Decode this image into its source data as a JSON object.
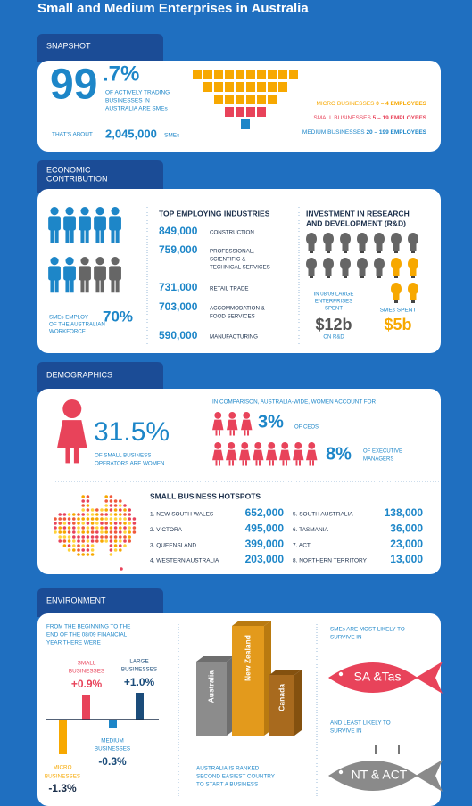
{
  "title": "Small and Medium Enterprises in Australia",
  "snapshot": {
    "heading": "SNAPSHOT",
    "big": "99",
    "big_decimal": ".7%",
    "big_caption": [
      "OF ACTIVELY TRADING",
      "BUSINESSES IN",
      "AUSTRALIA ARE SMEs"
    ],
    "about_prefix": "THAT'S ABOUT",
    "about_value": "2,045,000",
    "about_suffix": "SMEs",
    "legend": [
      {
        "label": "MICRO BUSINESSES",
        "range": "0 – 4 EMPLOYEES",
        "color": "#f7a800"
      },
      {
        "label": "SMALL BUSINESSES",
        "range": "5 – 19 EMPLOYEES",
        "color": "#e8435a"
      },
      {
        "label": "MEDIUM BUSINESSES",
        "range": "20 – 199 EMPLOYEES",
        "color": "#1d86c8"
      }
    ]
  },
  "economic": {
    "heading": [
      "ECONOMIC",
      "CONTRIBUTION"
    ],
    "employ_caption": [
      "SMEs EMPLOY",
      "OF THE AUSTRALIAN",
      "WORKFORCE"
    ],
    "employ_value": "70%",
    "industries_title": "TOP EMPLOYING INDUSTRIES",
    "industries": [
      {
        "value": "849,000",
        "label": [
          "CONSTRUCTION"
        ]
      },
      {
        "value": "759,000",
        "label": [
          "PROFESSIONAL,",
          "SCIENTIFIC &",
          "TECHNICAL SERVICES"
        ]
      },
      {
        "value": "731,000",
        "label": [
          "RETAIL TRADE"
        ]
      },
      {
        "value": "703,000",
        "label": [
          "ACCOMMODATION &",
          "FOOD SERVICES"
        ]
      },
      {
        "value": "590,000",
        "label": [
          "MANUFACTURING"
        ]
      }
    ],
    "research_title": [
      "INVESTMENT IN RESEARCH",
      "AND DEVELOPMENT (R&D)"
    ],
    "large_caption": [
      "IN 08/09 LARGE",
      "ENTERPRISES",
      "SPENT"
    ],
    "large_value": "$12b",
    "large_suffix": "ON R&D",
    "sme_caption": "SMEs SPENT",
    "sme_value": "$5b"
  },
  "demographics": {
    "heading": "DEMOGRAPHICS",
    "women_value": "31.5%",
    "women_caption": [
      "OF SMALL BUSINESS",
      "OPERATORS ARE WOMEN"
    ],
    "comparison": "IN COMPARISON, AUSTRALIA-WIDE, WOMEN ACCOUNT FOR",
    "ceo_value": "3%",
    "ceo_caption": "OF CEOS",
    "exec_value": "8%",
    "exec_caption": [
      "OF EXECUTIVE",
      "MANAGERS"
    ],
    "hotspots_title": "SMALL BUSINESS HOTSPOTS",
    "hotspots": [
      {
        "name": "1. NEW SOUTH WALES",
        "value": "652,000"
      },
      {
        "name": "2. VICTORA",
        "value": "495,000"
      },
      {
        "name": "3. QUEENSLAND",
        "value": "399,000"
      },
      {
        "name": "4. WESTERN AUSTRALIA",
        "value": "203,000"
      },
      {
        "name": "5. SOUTH AUSTRALIA",
        "value": "138,000"
      },
      {
        "name": "6. TASMANIA",
        "value": "36,000"
      },
      {
        "name": "7. ACT",
        "value": "23,000"
      },
      {
        "name": "8. NORTHERN TERRITORY",
        "value": "13,000"
      }
    ]
  },
  "environment": {
    "heading": "ENVIRONMENT",
    "intro": [
      "FROM THE BEGINNING TO THE",
      "END OF THE 08/09 FINANCIAL",
      "YEAR THERE WERE"
    ],
    "growth": [
      {
        "name": [
          "MICRO",
          "BUSINESSES"
        ],
        "value": -1.3,
        "label": "-1.3%",
        "color": "#f7a800"
      },
      {
        "name": [
          "SMALL",
          "BUSINESSES"
        ],
        "value": 0.9,
        "label": "+0.9%",
        "color": "#e8435a"
      },
      {
        "name": [
          "MEDIUM",
          "BUSINESSES"
        ],
        "value": -0.3,
        "label": "-0.3%",
        "color": "#1d86c8"
      },
      {
        "name": [
          "LARGE",
          "BUSINESSES"
        ],
        "value": 1.0,
        "label": "+1.0%",
        "color": "#1b4c7a"
      }
    ],
    "countries": [
      "Australia",
      "New Zealand",
      "Canada"
    ],
    "ranking_caption": [
      "AUSTRALIA IS RANKED",
      "SECOND EASIEST COUNTRY",
      "TO START A BUSINESS"
    ],
    "most_caption": [
      "SMEs ARE MOST LIKELY TO",
      "SURVIVE IN"
    ],
    "most_place": "SA &Tas",
    "least_caption": [
      "AND LEAST LIKELY TO",
      "SURVIVE IN"
    ],
    "least_place": "NT & ACT"
  }
}
